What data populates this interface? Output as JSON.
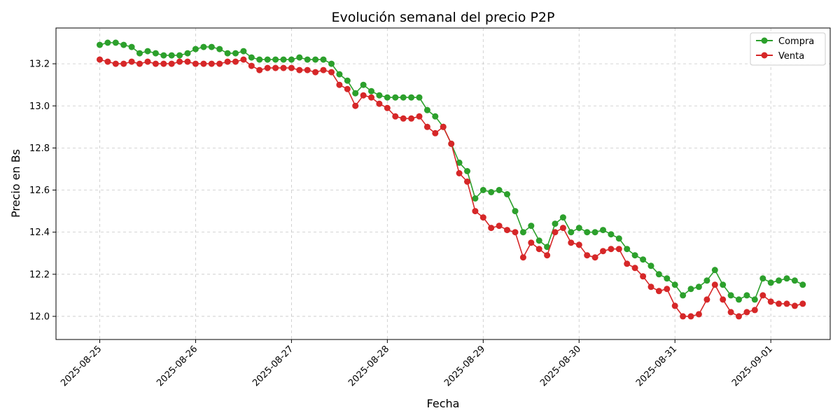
{
  "chart_data": {
    "type": "line",
    "title": "Evolución semanal del precio P2P",
    "xlabel": "Fecha",
    "ylabel": "Precio en Bs",
    "x_tick_labels": [
      "2025-08-25",
      "2025-08-26",
      "2025-08-27",
      "2025-08-28",
      "2025-08-29",
      "2025-08-30",
      "2025-08-31",
      "2025-09-01"
    ],
    "y_tick_labels": [
      "12.0",
      "12.2",
      "12.4",
      "12.6",
      "12.8",
      "13.0",
      "13.2"
    ],
    "xlim": [
      "2025-08-24T13:03",
      "2025-09-01T14:52"
    ],
    "ylim": [
      11.89,
      13.37
    ],
    "grid": true,
    "legend_position": "top-right",
    "series": [
      {
        "name": "Compra",
        "color": "#2ca02c",
        "points": [
          [
            "2025-08-25T00:00",
            13.29
          ],
          [
            "2025-08-25T02:00",
            13.3
          ],
          [
            "2025-08-25T04:00",
            13.3
          ],
          [
            "2025-08-25T06:00",
            13.29
          ],
          [
            "2025-08-25T08:00",
            13.28
          ],
          [
            "2025-08-25T10:00",
            13.25
          ],
          [
            "2025-08-25T12:00",
            13.26
          ],
          [
            "2025-08-25T14:00",
            13.25
          ],
          [
            "2025-08-25T16:00",
            13.24
          ],
          [
            "2025-08-25T18:00",
            13.24
          ],
          [
            "2025-08-25T20:00",
            13.24
          ],
          [
            "2025-08-25T22:00",
            13.25
          ],
          [
            "2025-08-26T00:00",
            13.27
          ],
          [
            "2025-08-26T02:00",
            13.28
          ],
          [
            "2025-08-26T04:00",
            13.28
          ],
          [
            "2025-08-26T06:00",
            13.27
          ],
          [
            "2025-08-26T08:00",
            13.25
          ],
          [
            "2025-08-26T10:00",
            13.25
          ],
          [
            "2025-08-26T12:00",
            13.26
          ],
          [
            "2025-08-26T14:00",
            13.23
          ],
          [
            "2025-08-26T16:00",
            13.22
          ],
          [
            "2025-08-26T18:00",
            13.22
          ],
          [
            "2025-08-26T20:00",
            13.22
          ],
          [
            "2025-08-26T22:00",
            13.22
          ],
          [
            "2025-08-27T00:00",
            13.22
          ],
          [
            "2025-08-27T02:00",
            13.23
          ],
          [
            "2025-08-27T04:00",
            13.22
          ],
          [
            "2025-08-27T06:00",
            13.22
          ],
          [
            "2025-08-27T08:00",
            13.22
          ],
          [
            "2025-08-27T10:00",
            13.2
          ],
          [
            "2025-08-27T12:00",
            13.15
          ],
          [
            "2025-08-27T14:00",
            13.12
          ],
          [
            "2025-08-27T16:00",
            13.06
          ],
          [
            "2025-08-27T18:00",
            13.1
          ],
          [
            "2025-08-27T20:00",
            13.07
          ],
          [
            "2025-08-27T22:00",
            13.05
          ],
          [
            "2025-08-28T00:00",
            13.04
          ],
          [
            "2025-08-28T02:00",
            13.04
          ],
          [
            "2025-08-28T04:00",
            13.04
          ],
          [
            "2025-08-28T06:00",
            13.04
          ],
          [
            "2025-08-28T08:00",
            13.04
          ],
          [
            "2025-08-28T10:00",
            12.98
          ],
          [
            "2025-08-28T12:00",
            12.95
          ],
          [
            "2025-08-28T14:00",
            12.9
          ],
          [
            "2025-08-28T16:00",
            12.82
          ],
          [
            "2025-08-28T18:00",
            12.73
          ],
          [
            "2025-08-28T20:00",
            12.69
          ],
          [
            "2025-08-28T22:00",
            12.56
          ],
          [
            "2025-08-29T00:00",
            12.6
          ],
          [
            "2025-08-29T02:00",
            12.59
          ],
          [
            "2025-08-29T04:00",
            12.6
          ],
          [
            "2025-08-29T06:00",
            12.58
          ],
          [
            "2025-08-29T08:00",
            12.5
          ],
          [
            "2025-08-29T10:00",
            12.4
          ],
          [
            "2025-08-29T12:00",
            12.43
          ],
          [
            "2025-08-29T14:00",
            12.36
          ],
          [
            "2025-08-29T16:00",
            12.33
          ],
          [
            "2025-08-29T18:00",
            12.44
          ],
          [
            "2025-08-29T20:00",
            12.47
          ],
          [
            "2025-08-29T22:00",
            12.4
          ],
          [
            "2025-08-30T00:00",
            12.42
          ],
          [
            "2025-08-30T02:00",
            12.4
          ],
          [
            "2025-08-30T04:00",
            12.4
          ],
          [
            "2025-08-30T06:00",
            12.41
          ],
          [
            "2025-08-30T08:00",
            12.39
          ],
          [
            "2025-08-30T10:00",
            12.37
          ],
          [
            "2025-08-30T12:00",
            12.32
          ],
          [
            "2025-08-30T14:00",
            12.29
          ],
          [
            "2025-08-30T16:00",
            12.27
          ],
          [
            "2025-08-30T18:00",
            12.24
          ],
          [
            "2025-08-30T20:00",
            12.2
          ],
          [
            "2025-08-30T22:00",
            12.18
          ],
          [
            "2025-08-31T00:00",
            12.15
          ],
          [
            "2025-08-31T02:00",
            12.1
          ],
          [
            "2025-08-31T04:00",
            12.13
          ],
          [
            "2025-08-31T06:00",
            12.14
          ],
          [
            "2025-08-31T08:00",
            12.17
          ],
          [
            "2025-08-31T10:00",
            12.22
          ],
          [
            "2025-08-31T12:00",
            12.15
          ],
          [
            "2025-08-31T14:00",
            12.1
          ],
          [
            "2025-08-31T16:00",
            12.08
          ],
          [
            "2025-08-31T18:00",
            12.1
          ],
          [
            "2025-08-31T20:00",
            12.08
          ],
          [
            "2025-08-31T22:00",
            12.18
          ],
          [
            "2025-09-01T00:00",
            12.16
          ],
          [
            "2025-09-01T02:00",
            12.17
          ],
          [
            "2025-09-01T04:00",
            12.18
          ],
          [
            "2025-09-01T06:00",
            12.17
          ],
          [
            "2025-09-01T08:00",
            12.15
          ]
        ]
      },
      {
        "name": "Venta",
        "color": "#d62728",
        "points": [
          [
            "2025-08-25T00:00",
            13.22
          ],
          [
            "2025-08-25T02:00",
            13.21
          ],
          [
            "2025-08-25T04:00",
            13.2
          ],
          [
            "2025-08-25T06:00",
            13.2
          ],
          [
            "2025-08-25T08:00",
            13.21
          ],
          [
            "2025-08-25T10:00",
            13.2
          ],
          [
            "2025-08-25T12:00",
            13.21
          ],
          [
            "2025-08-25T14:00",
            13.2
          ],
          [
            "2025-08-25T16:00",
            13.2
          ],
          [
            "2025-08-25T18:00",
            13.2
          ],
          [
            "2025-08-25T20:00",
            13.21
          ],
          [
            "2025-08-25T22:00",
            13.21
          ],
          [
            "2025-08-26T00:00",
            13.2
          ],
          [
            "2025-08-26T02:00",
            13.2
          ],
          [
            "2025-08-26T04:00",
            13.2
          ],
          [
            "2025-08-26T06:00",
            13.2
          ],
          [
            "2025-08-26T08:00",
            13.21
          ],
          [
            "2025-08-26T10:00",
            13.21
          ],
          [
            "2025-08-26T12:00",
            13.22
          ],
          [
            "2025-08-26T14:00",
            13.19
          ],
          [
            "2025-08-26T16:00",
            13.17
          ],
          [
            "2025-08-26T18:00",
            13.18
          ],
          [
            "2025-08-26T20:00",
            13.18
          ],
          [
            "2025-08-26T22:00",
            13.18
          ],
          [
            "2025-08-27T00:00",
            13.18
          ],
          [
            "2025-08-27T02:00",
            13.17
          ],
          [
            "2025-08-27T04:00",
            13.17
          ],
          [
            "2025-08-27T06:00",
            13.16
          ],
          [
            "2025-08-27T08:00",
            13.17
          ],
          [
            "2025-08-27T10:00",
            13.16
          ],
          [
            "2025-08-27T12:00",
            13.1
          ],
          [
            "2025-08-27T14:00",
            13.08
          ],
          [
            "2025-08-27T16:00",
            13.0
          ],
          [
            "2025-08-27T18:00",
            13.05
          ],
          [
            "2025-08-27T20:00",
            13.04
          ],
          [
            "2025-08-27T22:00",
            13.01
          ],
          [
            "2025-08-28T00:00",
            12.99
          ],
          [
            "2025-08-28T02:00",
            12.95
          ],
          [
            "2025-08-28T04:00",
            12.94
          ],
          [
            "2025-08-28T06:00",
            12.94
          ],
          [
            "2025-08-28T08:00",
            12.95
          ],
          [
            "2025-08-28T10:00",
            12.9
          ],
          [
            "2025-08-28T12:00",
            12.87
          ],
          [
            "2025-08-28T14:00",
            12.9
          ],
          [
            "2025-08-28T16:00",
            12.82
          ],
          [
            "2025-08-28T18:00",
            12.68
          ],
          [
            "2025-08-28T20:00",
            12.64
          ],
          [
            "2025-08-28T22:00",
            12.5
          ],
          [
            "2025-08-29T00:00",
            12.47
          ],
          [
            "2025-08-29T02:00",
            12.42
          ],
          [
            "2025-08-29T04:00",
            12.43
          ],
          [
            "2025-08-29T06:00",
            12.41
          ],
          [
            "2025-08-29T08:00",
            12.4
          ],
          [
            "2025-08-29T10:00",
            12.28
          ],
          [
            "2025-08-29T12:00",
            12.35
          ],
          [
            "2025-08-29T14:00",
            12.32
          ],
          [
            "2025-08-29T16:00",
            12.29
          ],
          [
            "2025-08-29T18:00",
            12.4
          ],
          [
            "2025-08-29T20:00",
            12.42
          ],
          [
            "2025-08-29T22:00",
            12.35
          ],
          [
            "2025-08-30T00:00",
            12.34
          ],
          [
            "2025-08-30T02:00",
            12.29
          ],
          [
            "2025-08-30T04:00",
            12.28
          ],
          [
            "2025-08-30T06:00",
            12.31
          ],
          [
            "2025-08-30T08:00",
            12.32
          ],
          [
            "2025-08-30T10:00",
            12.32
          ],
          [
            "2025-08-30T12:00",
            12.25
          ],
          [
            "2025-08-30T14:00",
            12.23
          ],
          [
            "2025-08-30T16:00",
            12.19
          ],
          [
            "2025-08-30T18:00",
            12.14
          ],
          [
            "2025-08-30T20:00",
            12.12
          ],
          [
            "2025-08-30T22:00",
            12.13
          ],
          [
            "2025-08-31T00:00",
            12.05
          ],
          [
            "2025-08-31T02:00",
            12.0
          ],
          [
            "2025-08-31T04:00",
            12.0
          ],
          [
            "2025-08-31T06:00",
            12.01
          ],
          [
            "2025-08-31T08:00",
            12.08
          ],
          [
            "2025-08-31T10:00",
            12.15
          ],
          [
            "2025-08-31T12:00",
            12.08
          ],
          [
            "2025-08-31T14:00",
            12.02
          ],
          [
            "2025-08-31T16:00",
            12.0
          ],
          [
            "2025-08-31T18:00",
            12.02
          ],
          [
            "2025-08-31T20:00",
            12.03
          ],
          [
            "2025-08-31T22:00",
            12.1
          ],
          [
            "2025-09-01T00:00",
            12.07
          ],
          [
            "2025-09-01T02:00",
            12.06
          ],
          [
            "2025-09-01T04:00",
            12.06
          ],
          [
            "2025-09-01T06:00",
            12.05
          ],
          [
            "2025-09-01T08:00",
            12.06
          ]
        ]
      }
    ]
  }
}
